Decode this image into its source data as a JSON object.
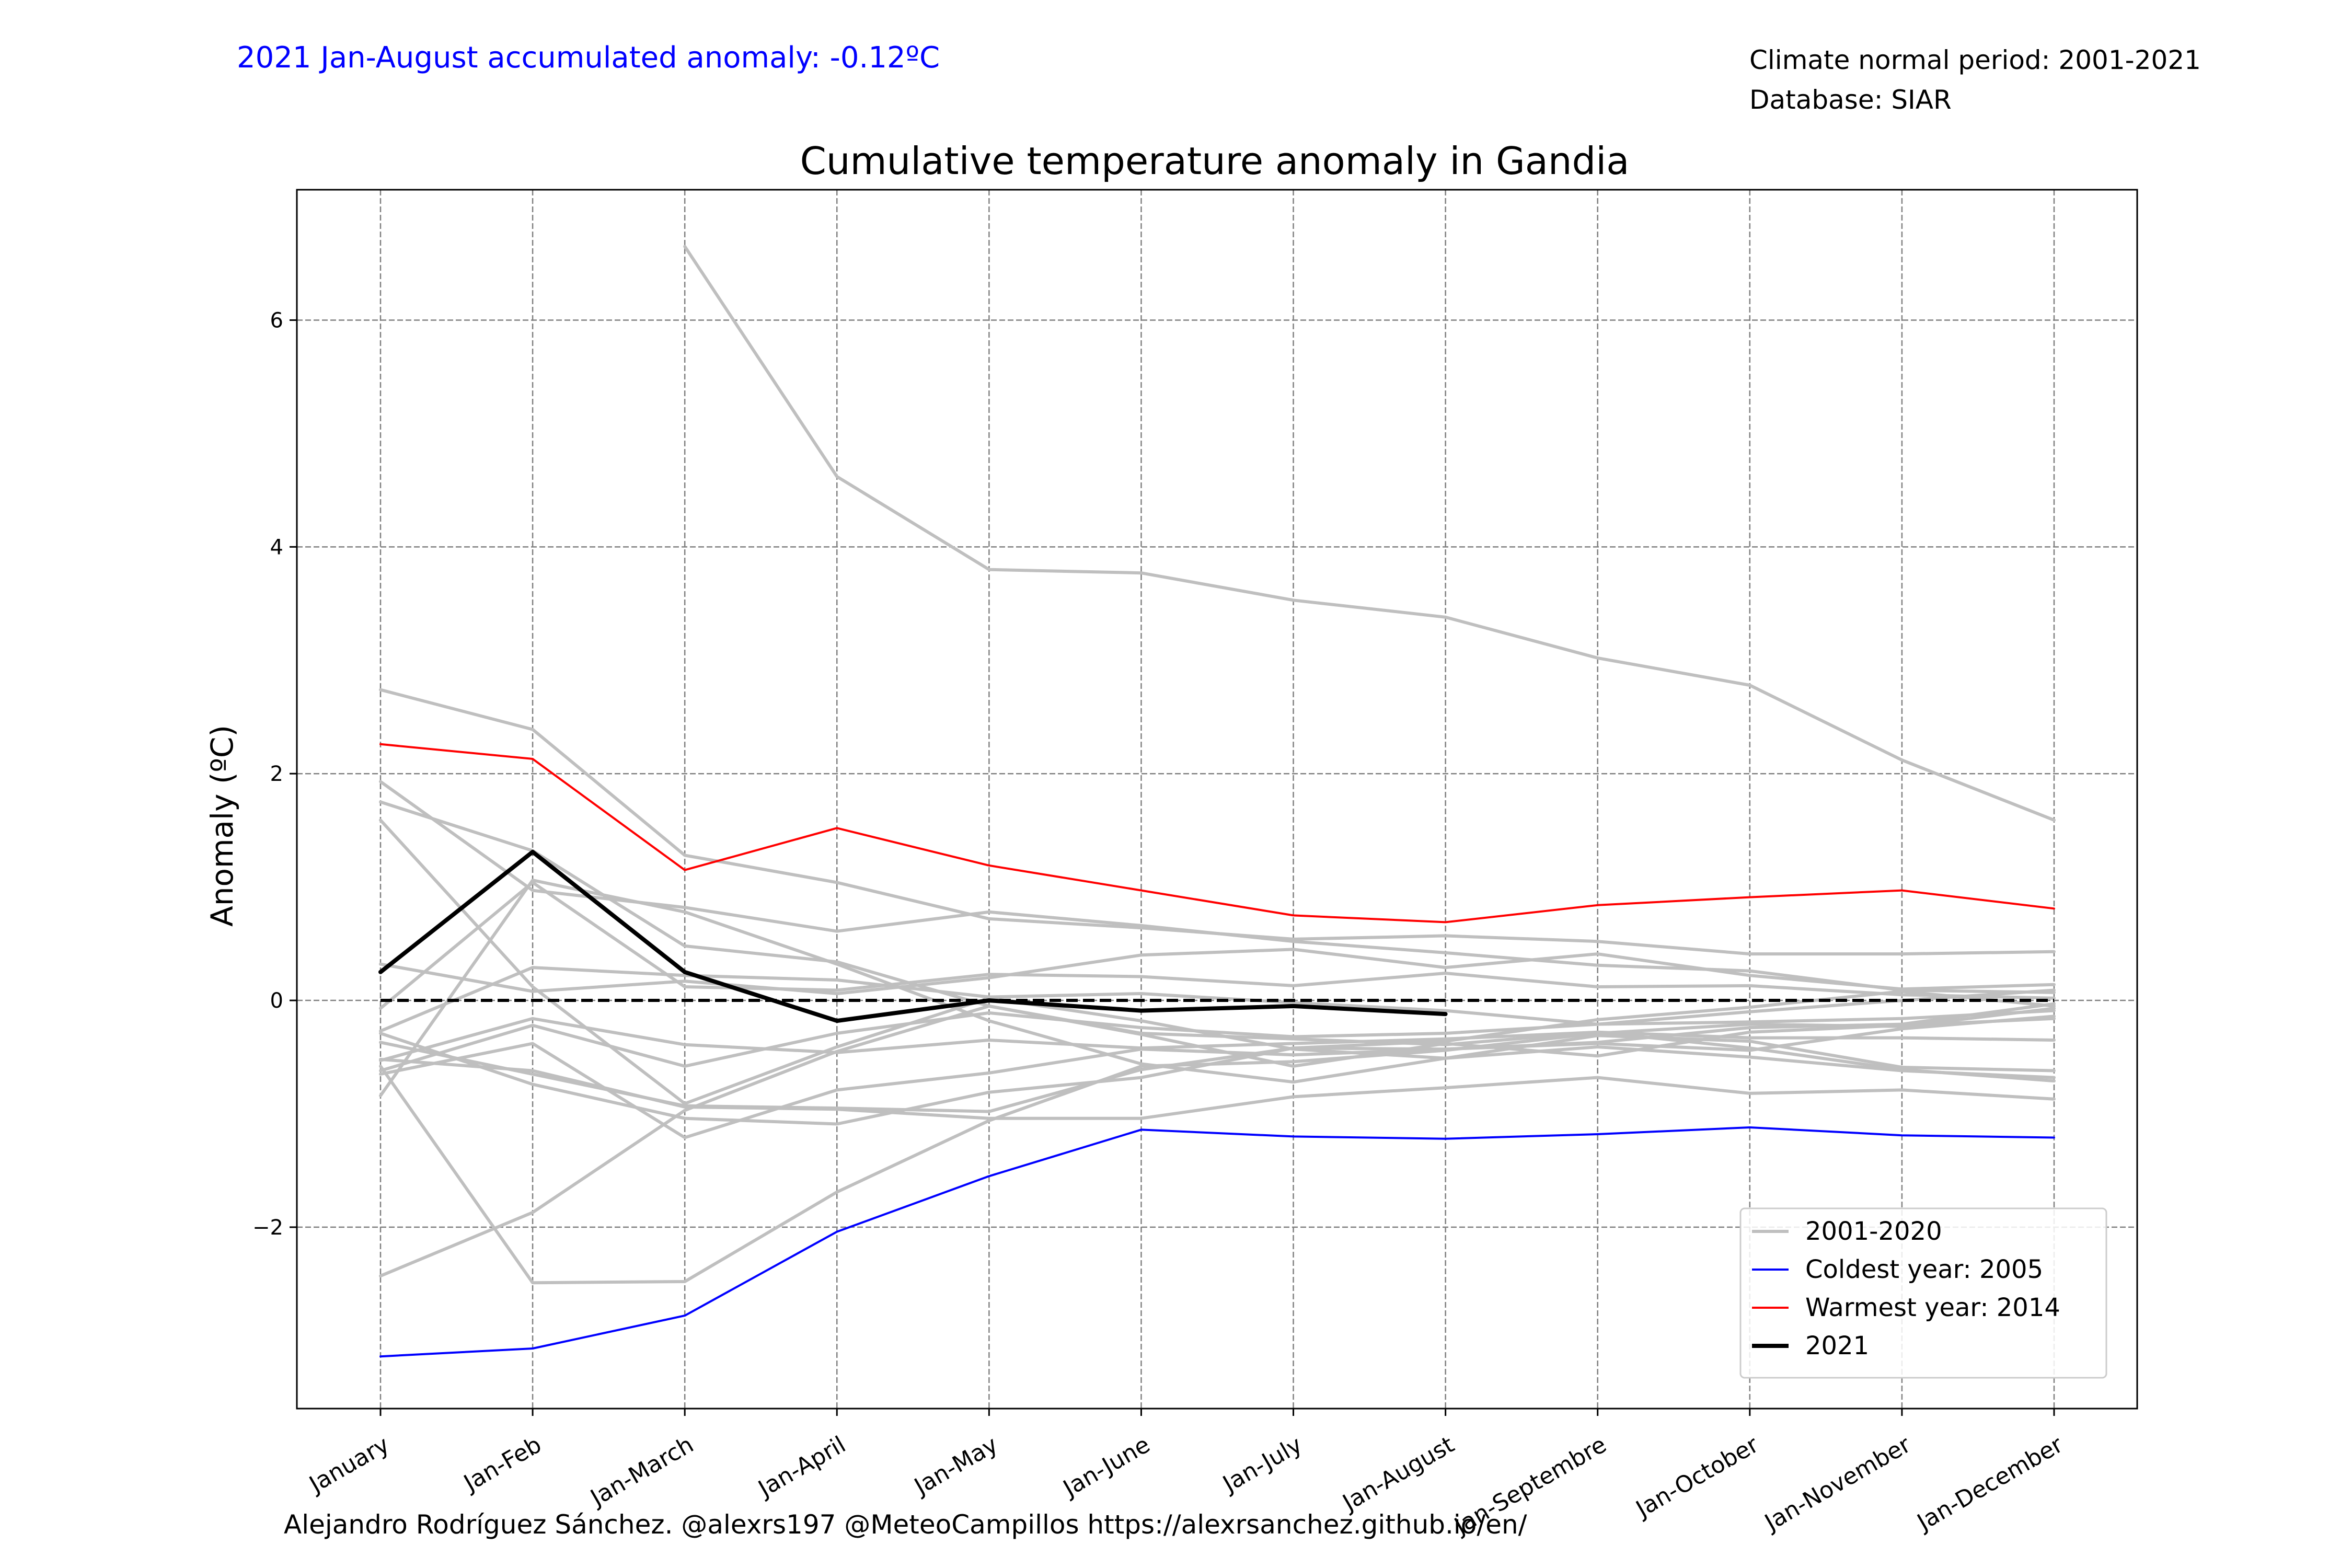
{
  "header": {
    "anomaly_text": "2021 Jan-August accumulated anomaly: -0.12ºC",
    "anomaly_color": "#0000ff",
    "normal_period": "Climate normal period: 2001-2021",
    "database": "Database: SIAR"
  },
  "footer": {
    "credit": "Alejandro Rodríguez Sánchez. @alexrs197 @MeteoCampillos   https://alexrsanchez.github.io/en/"
  },
  "chart_data": {
    "type": "line",
    "title": "Cumulative temperature anomaly in Gandia",
    "xlabel": "",
    "ylabel": "Anomaly (ºC)",
    "categories": [
      "January",
      "Jan-Feb",
      "Jan-March",
      "Jan-April",
      "Jan-May",
      "Jan-June",
      "Jan-July",
      "Jan-August",
      "Jan-Septembre",
      "Jan-October",
      "Jan-November",
      "Jan-December"
    ],
    "ylim": [
      -3.6,
      7.15
    ],
    "yticks": [
      -2,
      0,
      2,
      4,
      6
    ],
    "ytick_labels": [
      "−2",
      "0",
      "2",
      "4",
      "6"
    ],
    "grid": true,
    "legend_position": "lower-right",
    "colors": {
      "grey": "#bfbfbf",
      "coldest": "#0000ff",
      "warmest": "#ff0000",
      "current": "#000000",
      "grid": "#808080"
    },
    "legend": [
      {
        "label": "2001-2020",
        "color": "#bfbfbf",
        "width": 1.5
      },
      {
        "label": "Coldest year: 2005",
        "color": "#0000ff",
        "width": 1
      },
      {
        "label": "Warmest year: 2014",
        "color": "#ff0000",
        "width": 1
      },
      {
        "label": "2021",
        "color": "#000000",
        "width": 2
      }
    ],
    "series": [
      {
        "values": [
          null,
          null,
          6.65,
          4.62,
          3.8,
          3.77,
          3.53,
          3.38,
          3.02,
          2.78,
          2.12,
          1.59
        ]
      },
      {
        "values": [
          2.74,
          2.39,
          1.28,
          1.04,
          0.72,
          0.64,
          0.54,
          0.57,
          0.52,
          0.41,
          0.41,
          0.43
        ]
      },
      {
        "values": [
          1.93,
          0.97,
          0.82,
          0.61,
          0.78,
          0.66,
          0.52,
          0.42,
          0.31,
          0.26,
          0.09,
          0.07
        ]
      },
      {
        "values": [
          1.75,
          1.32,
          0.48,
          0.34,
          -0.05,
          -0.29,
          -0.34,
          -0.39,
          -0.28,
          -0.42,
          -0.61,
          -0.71
        ]
      },
      {
        "values": [
          1.59,
          0.12,
          -0.91,
          -0.41,
          0.02,
          -0.18,
          -0.43,
          -0.51,
          -0.31,
          -0.36,
          -0.59,
          -0.62
        ]
      },
      {
        "values": [
          0.32,
          0.08,
          0.17,
          0.06,
          0.2,
          0.4,
          0.45,
          0.29,
          0.41,
          0.22,
          0.1,
          0.14
        ]
      },
      {
        "values": [
          -0.07,
          1.04,
          0.12,
          0.09,
          0.23,
          0.21,
          0.13,
          0.24,
          0.12,
          0.13,
          0.05,
          0.02
        ]
      },
      {
        "values": [
          -0.27,
          0.29,
          0.22,
          0.18,
          0.03,
          0.06,
          -0.02,
          -0.09,
          -0.21,
          -0.1,
          0.0,
          0.09
        ]
      },
      {
        "values": [
          -0.37,
          -0.65,
          -0.93,
          -0.95,
          -0.98,
          -0.61,
          -0.42,
          -0.36,
          -0.17,
          -0.06,
          0.08,
          -0.05
        ]
      },
      {
        "values": [
          -0.53,
          -0.16,
          -0.39,
          -0.46,
          -0.35,
          -0.42,
          -0.38,
          -0.34,
          -0.28,
          -0.33,
          -0.33,
          -0.35
        ]
      },
      {
        "values": [
          -0.62,
          -0.22,
          -0.58,
          -0.29,
          -0.11,
          -0.24,
          -0.32,
          -0.29,
          -0.21,
          -0.19,
          -0.16,
          -0.09
        ]
      },
      {
        "values": [
          -0.65,
          -0.38,
          -1.21,
          -0.79,
          -0.64,
          -0.43,
          -0.48,
          -0.43,
          -0.37,
          -0.24,
          -0.21,
          -0.03
        ]
      },
      {
        "values": [
          -0.84,
          1.06,
          0.78,
          0.32,
          -0.18,
          -0.56,
          -0.72,
          -0.51,
          -0.41,
          -0.5,
          -0.62,
          -0.68
        ]
      },
      {
        "values": [
          -0.29,
          -0.74,
          -1.04,
          -1.09,
          -0.81,
          -0.68,
          -0.42,
          -0.43,
          -0.38,
          -0.44,
          -0.25,
          -0.14
        ]
      },
      {
        "values": [
          -0.52,
          -0.62,
          -0.94,
          -0.96,
          -1.04,
          -1.04,
          -0.85,
          -0.77,
          -0.68,
          -0.82,
          -0.79,
          -0.87
        ]
      },
      {
        "values": [
          -0.58,
          -2.49,
          -2.48,
          -1.69,
          -1.06,
          -0.58,
          -0.54,
          -0.44,
          -0.29,
          -0.21,
          -0.23,
          -0.07
        ]
      },
      {
        "values": [
          -2.43,
          -1.87,
          -0.97,
          -0.45,
          -0.05,
          -0.3,
          -0.58,
          -0.38,
          -0.49,
          -0.28,
          -0.22,
          -0.16
        ]
      },
      {
        "name": "Coldest year: 2005",
        "role": "coldest",
        "values": [
          -3.14,
          -3.07,
          -2.78,
          -2.04,
          -1.55,
          -1.14,
          -1.2,
          -1.22,
          -1.18,
          -1.12,
          -1.19,
          -1.21
        ]
      },
      {
        "name": "Warmest year: 2014",
        "role": "warmest",
        "values": [
          2.26,
          2.13,
          1.15,
          1.52,
          1.19,
          0.97,
          0.75,
          0.69,
          0.84,
          0.91,
          0.97,
          0.81
        ]
      },
      {
        "name": "2021",
        "role": "current",
        "values": [
          0.25,
          1.31,
          0.25,
          -0.18,
          0.0,
          -0.09,
          -0.05,
          -0.12,
          null,
          null,
          null,
          null
        ]
      }
    ],
    "baseline": 0
  }
}
